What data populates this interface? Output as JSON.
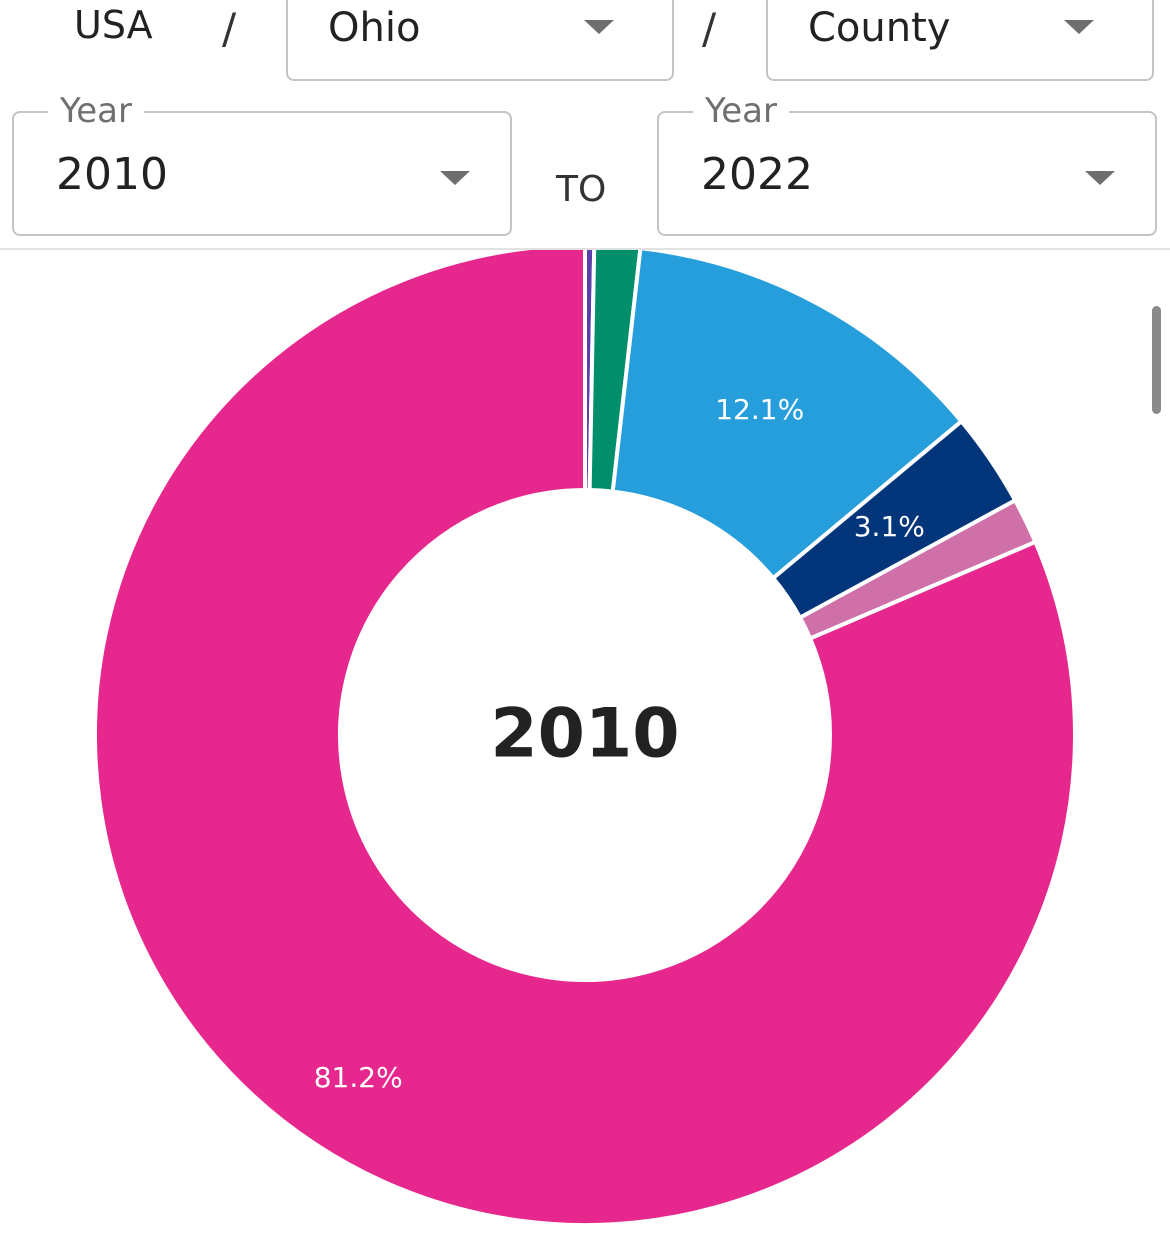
{
  "breadcrumb": {
    "country": "USA",
    "separator": "/",
    "state_select": {
      "value": "Ohio"
    },
    "county_select": {
      "value": "County"
    }
  },
  "year_range": {
    "from": {
      "label": "Year",
      "value": "2010"
    },
    "to_text": "TO",
    "to": {
      "label": "Year",
      "value": "2022"
    }
  },
  "chart_data": {
    "type": "pie",
    "center_label": "2010",
    "categories": [
      "",
      "",
      "",
      "",
      "",
      ""
    ],
    "values": [
      0.3,
      1.5,
      12.1,
      3.1,
      1.5,
      81.2
    ],
    "colors": [
      "#5b3fa8",
      "#008f6a",
      "#279edc",
      "#03357b",
      "#d070a8",
      "#e6288e"
    ],
    "data_labels": [
      "",
      "",
      "12.1%",
      "3.1%",
      "",
      "81.2%"
    ],
    "start_angle_deg": 0
  },
  "colors": {
    "border": "#c4c4c4",
    "label_gray": "#6f6f6f",
    "caret": "#6e6e6e"
  }
}
